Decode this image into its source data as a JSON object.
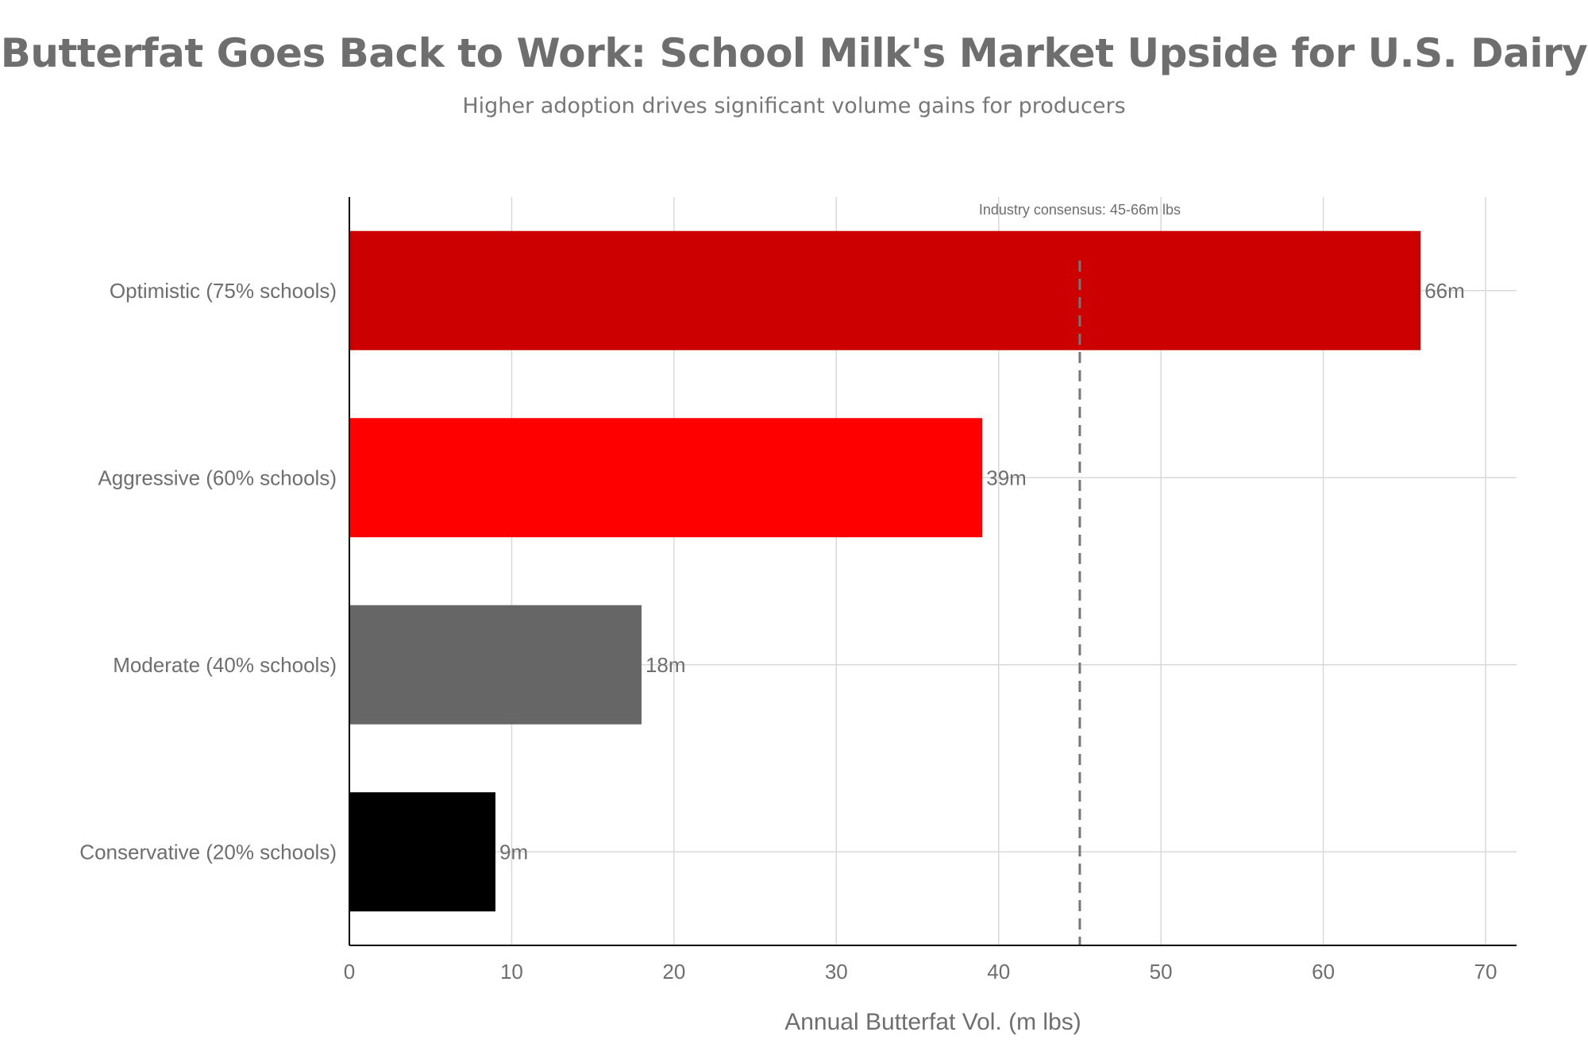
{
  "chart_data": {
    "type": "bar",
    "orientation": "horizontal",
    "title": "Butterfat Goes Back to Work: School Milk's Market Upside for U.S. Dairy",
    "subtitle": "Higher adoption drives significant volume gains for producers",
    "xlabel": "Annual Butterfat Vol. (m lbs)",
    "ylabel": "",
    "xlim": [
      0,
      72
    ],
    "xticks": [
      0,
      10,
      20,
      30,
      40,
      50,
      60,
      70
    ],
    "grid": true,
    "categories": [
      "Optimistic (75% schools)",
      "Aggressive (60% schools)",
      "Moderate (40% schools)",
      "Conservative (20% schools)"
    ],
    "values": [
      66,
      39,
      18,
      9
    ],
    "data_labels": [
      "66m",
      "39m",
      "18m",
      "9m"
    ],
    "colors": [
      "#cc0000",
      "#ff0000",
      "#666666",
      "#000000"
    ],
    "reference_line": {
      "x": 45,
      "style": "dashed",
      "color": "#777777",
      "label": "Industry consensus: 45-66m lbs"
    }
  }
}
